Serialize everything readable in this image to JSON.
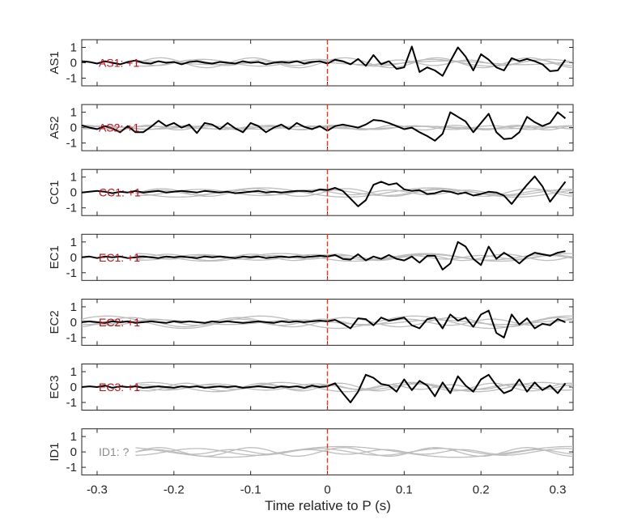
{
  "chart_data": {
    "type": "line",
    "xlabel": "Time relative to P (s)",
    "xlim": [
      -0.32,
      0.32
    ],
    "xticks": [
      -0.3,
      -0.2,
      -0.1,
      0,
      0.1,
      0.2,
      0.3
    ],
    "xtick_labels": [
      "-0.3",
      "-0.2",
      "-0.1",
      "0",
      "0.1",
      "0.2",
      "0.3"
    ],
    "ylim": [
      -1.5,
      1.5
    ],
    "yticks": [
      1,
      0,
      -1
    ],
    "ytick_labels": [
      "1",
      "0",
      "-1"
    ],
    "marker_time": 0,
    "colors": {
      "polarity_label": "#b5121b",
      "unknown_label": "#8c8c8c",
      "trace": "#000000",
      "background_traces": "#bdbdbd",
      "marker": "#e8331f",
      "axis": "#262626"
    },
    "panels": [
      {
        "ylabel": "AS1",
        "label": "AS1: +1",
        "label_color": "#b5121b",
        "x": [
          -0.32,
          -0.31,
          -0.3,
          -0.29,
          -0.28,
          -0.27,
          -0.26,
          -0.25,
          -0.24,
          -0.23,
          -0.22,
          -0.21,
          -0.2,
          -0.19,
          -0.18,
          -0.17,
          -0.16,
          -0.15,
          -0.14,
          -0.13,
          -0.12,
          -0.11,
          -0.1,
          -0.09,
          -0.08,
          -0.07,
          -0.06,
          -0.05,
          -0.04,
          -0.03,
          -0.02,
          -0.01,
          0,
          0.01,
          0.02,
          0.03,
          0.04,
          0.05,
          0.06,
          0.07,
          0.08,
          0.09,
          0.1,
          0.11,
          0.12,
          0.13,
          0.14,
          0.15,
          0.16,
          0.17,
          0.18,
          0.19,
          0.2,
          0.21,
          0.22,
          0.23,
          0.24,
          0.25,
          0.26,
          0.27,
          0.28,
          0.29,
          0.3,
          0.31
        ],
        "y": [
          0.1,
          0.05,
          -0.05,
          0.1,
          0,
          -0.1,
          0.05,
          0.15,
          0,
          -0.05,
          0.1,
          0,
          0.05,
          -0.1,
          0.05,
          0.1,
          0,
          -0.05,
          0.05,
          0,
          -0.05,
          0.1,
          0,
          0.05,
          -0.1,
          0,
          0.05,
          0,
          0.1,
          -0.05,
          0.05,
          0.1,
          -0.05,
          0.2,
          0.1,
          -0.1,
          0.25,
          -0.2,
          0.5,
          -0.1,
          0.1,
          -0.4,
          -0.3,
          1.05,
          -0.6,
          -0.3,
          -0.5,
          -0.85,
          0.1,
          1.0,
          0.4,
          -0.5,
          0.55,
          0.2,
          -0.3,
          -0.5,
          0.3,
          0.1,
          0.25,
          0.1,
          -0.1,
          -0.55,
          -0.5,
          0.2
        ],
        "background": [
          {
            "amp": 0.32,
            "period": 0.12,
            "phase": 0.4,
            "start": -0.25
          },
          {
            "amp": 0.22,
            "period": 0.15,
            "phase": 2.1,
            "start": -0.25
          },
          {
            "amp": 0.18,
            "period": 0.09,
            "phase": 1.3,
            "start": -0.25
          },
          {
            "amp": 0.12,
            "period": 0.2,
            "phase": 3.0,
            "start": -0.25
          }
        ]
      },
      {
        "ylabel": "AS2",
        "label": "AS2: +1",
        "label_color": "#b5121b",
        "x": [
          -0.32,
          -0.31,
          -0.3,
          -0.29,
          -0.28,
          -0.27,
          -0.26,
          -0.25,
          -0.24,
          -0.23,
          -0.22,
          -0.21,
          -0.2,
          -0.19,
          -0.18,
          -0.17,
          -0.16,
          -0.15,
          -0.14,
          -0.13,
          -0.12,
          -0.11,
          -0.1,
          -0.09,
          -0.08,
          -0.07,
          -0.06,
          -0.05,
          -0.04,
          -0.03,
          -0.02,
          -0.01,
          0,
          0.01,
          0.02,
          0.03,
          0.04,
          0.05,
          0.06,
          0.07,
          0.08,
          0.09,
          0.1,
          0.11,
          0.12,
          0.13,
          0.14,
          0.15,
          0.16,
          0.17,
          0.18,
          0.19,
          0.2,
          0.21,
          0.22,
          0.23,
          0.24,
          0.25,
          0.26,
          0.27,
          0.28,
          0.29,
          0.3,
          0.31
        ],
        "y": [
          0.15,
          0,
          -0.1,
          0.1,
          -0.05,
          -0.3,
          0.1,
          -0.3,
          -0.3,
          0.05,
          0.45,
          0.1,
          0.3,
          0,
          0.2,
          -0.35,
          0.3,
          0.2,
          -0.1,
          0.3,
          -0.05,
          -0.3,
          0.3,
          0.1,
          -0.3,
          0,
          0.2,
          -0.1,
          0.3,
          0.05,
          -0.1,
          0.1,
          -0.2,
          0.1,
          0.2,
          0.1,
          0,
          0.2,
          0.5,
          0.45,
          0.3,
          0.1,
          -0.1,
          0,
          -0.3,
          -0.55,
          -0.85,
          -0.4,
          1.0,
          0.7,
          0.4,
          -0.3,
          0.3,
          0.9,
          -0.3,
          -0.75,
          -0.7,
          -0.3,
          0.7,
          0.35,
          0.1,
          0.3,
          1.0,
          0.6
        ],
        "background": [
          {
            "amp": 0.12,
            "period": 0.1,
            "phase": 0.7,
            "start": -0.32
          },
          {
            "amp": 0.1,
            "period": 0.14,
            "phase": 2.4,
            "start": -0.32
          },
          {
            "amp": 0.15,
            "period": 0.08,
            "phase": 1.1,
            "start": -0.32
          },
          {
            "amp": 0.08,
            "period": 0.18,
            "phase": 3.3,
            "start": -0.32
          }
        ]
      },
      {
        "ylabel": "CC1",
        "label": "CC1: +1",
        "label_color": "#b5121b",
        "x": [
          -0.32,
          -0.31,
          -0.3,
          -0.29,
          -0.28,
          -0.27,
          -0.26,
          -0.25,
          -0.24,
          -0.23,
          -0.22,
          -0.21,
          -0.2,
          -0.19,
          -0.18,
          -0.17,
          -0.16,
          -0.15,
          -0.14,
          -0.13,
          -0.12,
          -0.11,
          -0.1,
          -0.09,
          -0.08,
          -0.07,
          -0.06,
          -0.05,
          -0.04,
          -0.03,
          -0.02,
          -0.01,
          0,
          0.01,
          0.02,
          0.03,
          0.04,
          0.05,
          0.06,
          0.07,
          0.08,
          0.09,
          0.1,
          0.11,
          0.12,
          0.13,
          0.14,
          0.15,
          0.16,
          0.17,
          0.18,
          0.19,
          0.2,
          0.21,
          0.22,
          0.23,
          0.24,
          0.25,
          0.26,
          0.27,
          0.28,
          0.29,
          0.3,
          0.31
        ],
        "y": [
          0,
          0.05,
          0.1,
          0.05,
          -0.05,
          0.05,
          0,
          0.1,
          0,
          0.05,
          0.1,
          0,
          0.05,
          0.1,
          0.05,
          0,
          0.1,
          0.05,
          0,
          0.05,
          -0.05,
          0,
          0.05,
          0.1,
          0,
          0.05,
          0,
          0.05,
          0.1,
          0.1,
          0.05,
          0.2,
          0.15,
          0.3,
          0.1,
          -0.4,
          -0.9,
          -0.5,
          0.5,
          0.7,
          0.5,
          0.6,
          0.2,
          0.1,
          0.15,
          -0.1,
          -0.05,
          0.1,
          0.05,
          -0.1,
          0,
          -0.2,
          -0.1,
          0.05,
          0,
          -0.2,
          -0.75,
          -0.1,
          0.5,
          1.05,
          0.4,
          -0.6,
          0.05,
          0.7
        ],
        "background": [
          {
            "amp": 0.25,
            "period": 0.12,
            "phase": 0.3,
            "start": -0.25
          },
          {
            "amp": 0.2,
            "period": 0.16,
            "phase": 1.8,
            "start": -0.25
          },
          {
            "amp": 0.15,
            "period": 0.1,
            "phase": 2.7,
            "start": -0.25
          },
          {
            "amp": 0.3,
            "period": 0.22,
            "phase": 4.0,
            "start": -0.25
          }
        ]
      },
      {
        "ylabel": "EC1",
        "label": "EC1: +1",
        "label_color": "#b5121b",
        "x": [
          -0.32,
          -0.31,
          -0.3,
          -0.29,
          -0.28,
          -0.27,
          -0.26,
          -0.25,
          -0.24,
          -0.23,
          -0.22,
          -0.21,
          -0.2,
          -0.19,
          -0.18,
          -0.17,
          -0.16,
          -0.15,
          -0.14,
          -0.13,
          -0.12,
          -0.11,
          -0.1,
          -0.09,
          -0.08,
          -0.07,
          -0.06,
          -0.05,
          -0.04,
          -0.03,
          -0.02,
          -0.01,
          0,
          0.01,
          0.02,
          0.03,
          0.04,
          0.05,
          0.06,
          0.07,
          0.08,
          0.09,
          0.1,
          0.11,
          0.12,
          0.13,
          0.14,
          0.15,
          0.16,
          0.17,
          0.18,
          0.19,
          0.2,
          0.21,
          0.22,
          0.23,
          0.24,
          0.25,
          0.26,
          0.27,
          0.28,
          0.29,
          0.3,
          0.31
        ],
        "y": [
          0,
          0.05,
          -0.05,
          0.05,
          0,
          0.05,
          -0.05,
          0,
          0.05,
          0,
          -0.05,
          0.05,
          0,
          0.05,
          0,
          -0.05,
          0.05,
          0,
          0.05,
          0,
          -0.05,
          0.05,
          0,
          0.05,
          -0.05,
          0,
          0.05,
          0,
          0.05,
          0,
          0.05,
          0.1,
          0.05,
          0.15,
          -0.1,
          -0.15,
          0.2,
          -0.2,
          0.05,
          -0.1,
          0.15,
          -0.1,
          -0.2,
          0.05,
          -0.35,
          0.1,
          0.1,
          -0.8,
          -0.4,
          1.0,
          0.7,
          -0.1,
          -0.5,
          0.7,
          -0.1,
          0.3,
          0.0,
          -0.4,
          0.05,
          0.3,
          0.2,
          0.1,
          0.3,
          0.4
        ],
        "background": [
          {
            "amp": 0.2,
            "period": 0.11,
            "phase": 0.9,
            "start": -0.25
          },
          {
            "amp": 0.18,
            "period": 0.15,
            "phase": 2.2,
            "start": -0.25
          },
          {
            "amp": 0.12,
            "period": 0.09,
            "phase": 0.2,
            "start": -0.25
          },
          {
            "amp": 0.25,
            "period": 0.19,
            "phase": 3.6,
            "start": -0.25
          }
        ]
      },
      {
        "ylabel": "EC2",
        "label": "EC2: +1",
        "label_color": "#b5121b",
        "x": [
          -0.32,
          -0.31,
          -0.3,
          -0.29,
          -0.28,
          -0.27,
          -0.26,
          -0.25,
          -0.24,
          -0.23,
          -0.22,
          -0.21,
          -0.2,
          -0.19,
          -0.18,
          -0.17,
          -0.16,
          -0.15,
          -0.14,
          -0.13,
          -0.12,
          -0.11,
          -0.1,
          -0.09,
          -0.08,
          -0.07,
          -0.06,
          -0.05,
          -0.04,
          -0.03,
          -0.02,
          -0.01,
          0,
          0.01,
          0.02,
          0.03,
          0.04,
          0.05,
          0.06,
          0.07,
          0.08,
          0.09,
          0.1,
          0.11,
          0.12,
          0.13,
          0.14,
          0.15,
          0.16,
          0.17,
          0.18,
          0.19,
          0.2,
          0.21,
          0.22,
          0.23,
          0.24,
          0.25,
          0.26,
          0.27,
          0.28,
          0.29,
          0.3,
          0.31
        ],
        "y": [
          0,
          0.05,
          0,
          -0.05,
          0.05,
          0,
          0.05,
          -0.05,
          0,
          0.05,
          0,
          -0.05,
          0.05,
          0,
          0.05,
          0,
          -0.05,
          0.05,
          0,
          0.05,
          0,
          -0.05,
          0,
          0.05,
          0,
          -0.05,
          0.05,
          0,
          0.05,
          0,
          0.05,
          0.1,
          0.05,
          0.15,
          -0.1,
          -0.4,
          0.25,
          0.2,
          -0.2,
          0.3,
          0.1,
          0.2,
          0.3,
          -0.2,
          -0.4,
          0.2,
          0.3,
          -0.4,
          0.5,
          0.1,
          0.3,
          -0.3,
          0.5,
          0.75,
          -0.7,
          -1.0,
          0.5,
          -0.15,
          0.25,
          -0.4,
          -0.1,
          -0.2,
          0.2,
          0.0
        ],
        "background": [
          {
            "amp": 0.3,
            "period": 0.14,
            "phase": 0.5,
            "start": -0.32
          },
          {
            "amp": 0.2,
            "period": 0.11,
            "phase": 1.9,
            "start": -0.32
          },
          {
            "amp": 0.15,
            "period": 0.18,
            "phase": 2.9,
            "start": -0.32
          },
          {
            "amp": 0.4,
            "period": 0.2,
            "phase": 4.3,
            "start": -0.32
          }
        ]
      },
      {
        "ylabel": "EC3",
        "label": "EC3: +1",
        "label_color": "#b5121b",
        "x": [
          -0.32,
          -0.31,
          -0.3,
          -0.29,
          -0.28,
          -0.27,
          -0.26,
          -0.25,
          -0.24,
          -0.23,
          -0.22,
          -0.21,
          -0.2,
          -0.19,
          -0.18,
          -0.17,
          -0.16,
          -0.15,
          -0.14,
          -0.13,
          -0.12,
          -0.11,
          -0.1,
          -0.09,
          -0.08,
          -0.07,
          -0.06,
          -0.05,
          -0.04,
          -0.03,
          -0.02,
          -0.01,
          0,
          0.01,
          0.02,
          0.03,
          0.04,
          0.05,
          0.06,
          0.07,
          0.08,
          0.09,
          0.1,
          0.11,
          0.12,
          0.13,
          0.14,
          0.15,
          0.16,
          0.17,
          0.18,
          0.19,
          0.2,
          0.21,
          0.22,
          0.23,
          0.24,
          0.25,
          0.26,
          0.27,
          0.28,
          0.29,
          0.3,
          0.31
        ],
        "y": [
          0,
          0.05,
          0,
          0.1,
          -0.05,
          0.05,
          0,
          0.05,
          -0.05,
          0,
          0.05,
          0,
          -0.05,
          0.05,
          0,
          0.05,
          -0.05,
          0,
          0.05,
          0,
          0.05,
          -0.05,
          0,
          0.05,
          0,
          -0.05,
          0.05,
          0,
          0.05,
          -0.05,
          0.1,
          0,
          0.05,
          0.25,
          -0.4,
          -1.0,
          -0.3,
          0.8,
          0.6,
          0.2,
          0.1,
          -0.3,
          0.5,
          -0.2,
          0.4,
          0.1,
          -0.6,
          0.3,
          -0.4,
          0.7,
          0.1,
          -0.3,
          0.5,
          0.8,
          0.1,
          -0.4,
          -0.2,
          0.5,
          -0.3,
          0.3,
          -0.2,
          0.1,
          -0.4,
          0.25
        ],
        "background": [
          {
            "amp": 0.25,
            "period": 0.1,
            "phase": 0.6,
            "start": -0.25
          },
          {
            "amp": 0.2,
            "period": 0.13,
            "phase": 2.3,
            "start": -0.25
          },
          {
            "amp": 0.15,
            "period": 0.08,
            "phase": 1.5,
            "start": -0.25
          },
          {
            "amp": 0.3,
            "period": 0.17,
            "phase": 3.8,
            "start": -0.25
          }
        ]
      },
      {
        "ylabel": "ID1",
        "label": "ID1: ?",
        "label_color": "#8c8c8c",
        "x": [],
        "y": [],
        "background": [
          {
            "amp": 0.28,
            "period": 0.12,
            "phase": 0.5,
            "start": -0.25
          },
          {
            "amp": 0.22,
            "period": 0.16,
            "phase": 2.0,
            "start": -0.25
          },
          {
            "amp": 0.15,
            "period": 0.1,
            "phase": 3.1,
            "start": -0.25
          },
          {
            "amp": 0.35,
            "period": 0.3,
            "phase": 1.2,
            "start": -0.25
          }
        ]
      }
    ]
  }
}
